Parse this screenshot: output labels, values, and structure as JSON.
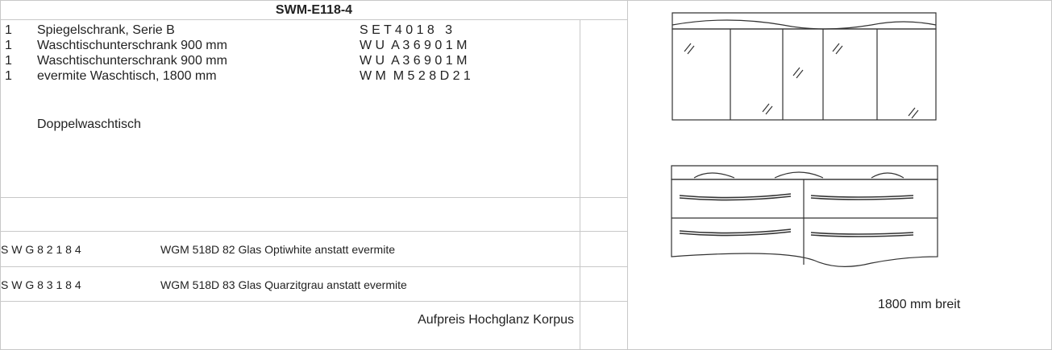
{
  "header": {
    "title": "SWM-E118-4"
  },
  "items": [
    {
      "qty": "1",
      "name": "Spiegelschrank, Serie B",
      "code": "S E T 4 0 1 8   3"
    },
    {
      "qty": "1",
      "name": "Waschtischunterschrank 900 mm",
      "code": "W U  A 3 6 9 0 1 M"
    },
    {
      "qty": "1",
      "name": "Waschtischunterschrank 900 mm",
      "code": "W U  A 3 6 9 0 1 M"
    },
    {
      "qty": "1",
      "name": "evermite Waschtisch, 1800 mm",
      "code": "W M  M 5 2 8 D 2 1"
    }
  ],
  "item_note": "Doppelwaschtisch",
  "options": [
    {
      "code": "S W G 8 2 1 8 4",
      "text": "WGM 518D 82 Glas Optiwhite anstatt evermite"
    },
    {
      "code": "S W G 8 3 1 8 4",
      "text": "WGM 518D 83 Glas Quarzitgrau anstatt evermite"
    }
  ],
  "surcharge": "Aufpreis Hochglanz Korpus",
  "caption": "1800 mm breit"
}
